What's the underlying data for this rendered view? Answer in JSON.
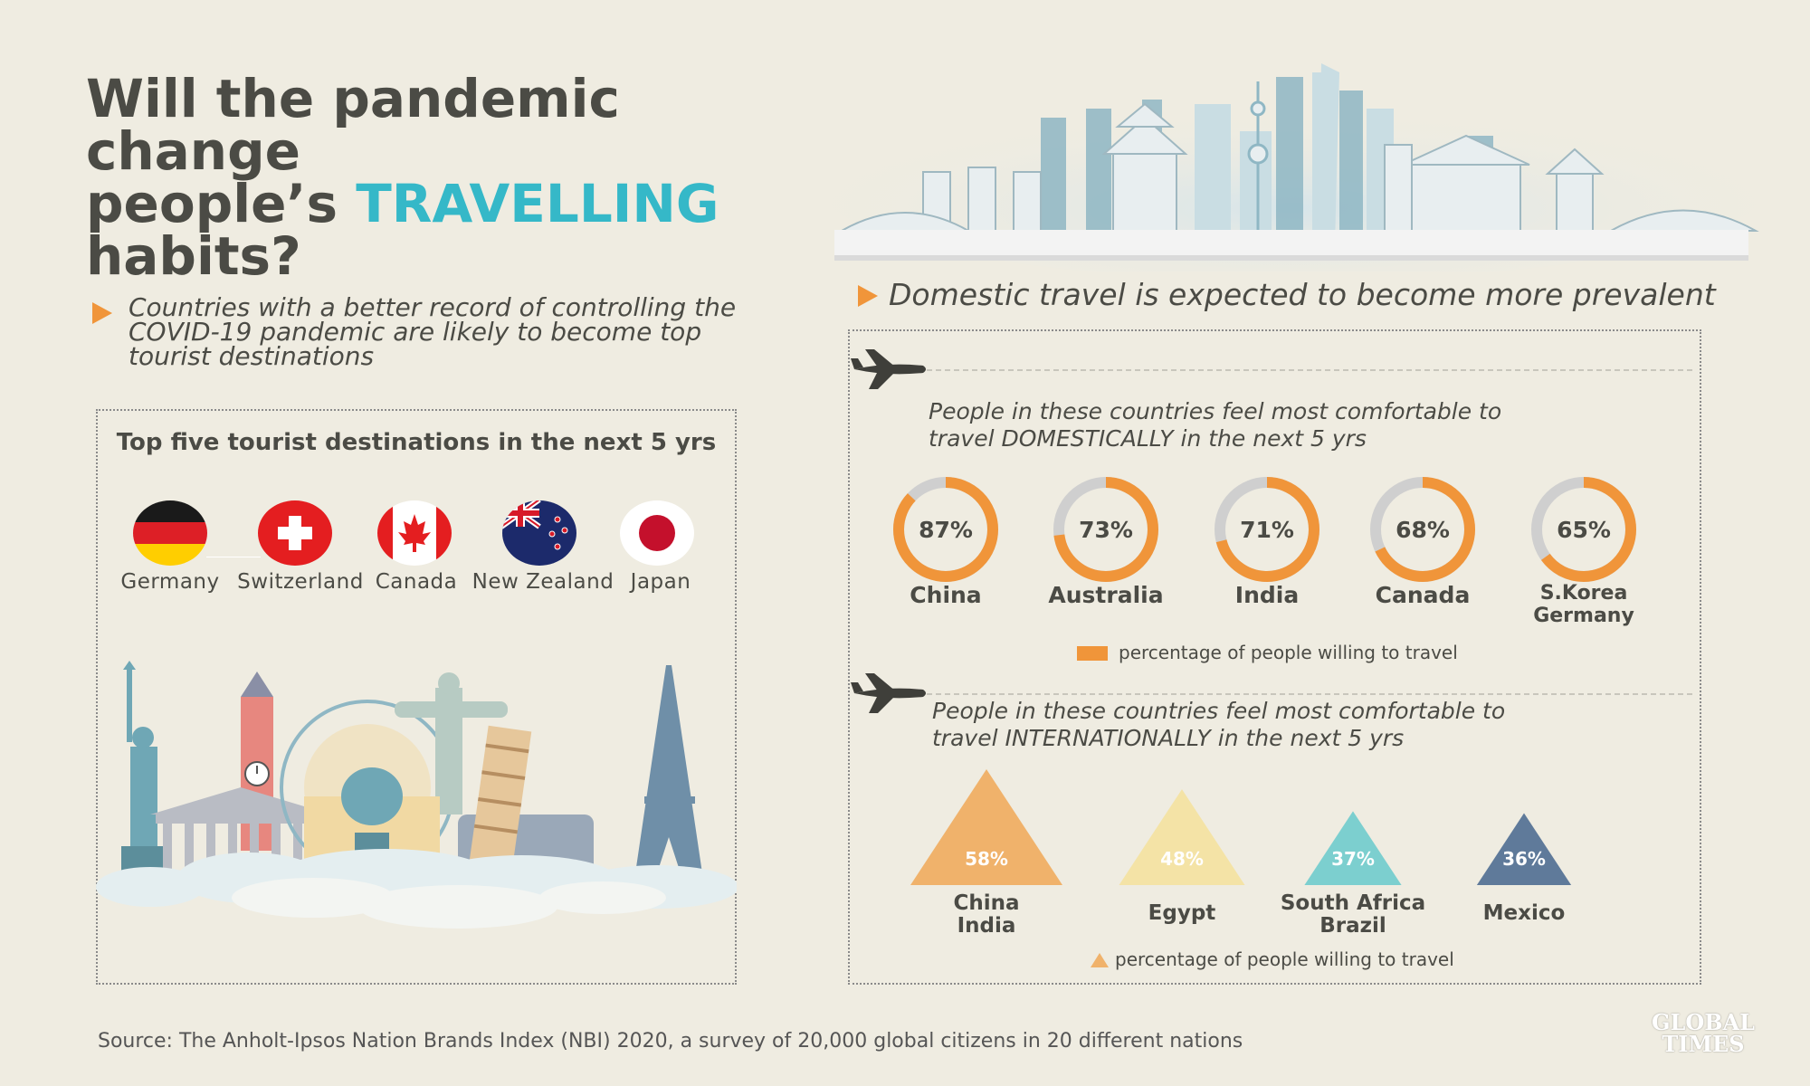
{
  "title": {
    "line1": "Will the pandemic change",
    "line2_prefix": "people’s ",
    "line2_highlight": "TRAVELLING",
    "line3": "habits?"
  },
  "left_section": {
    "subtitle": "Countries with a better record of controlling the COVID-19 pandemic are likely to become top tourist destinations",
    "box_title": "Top five tourist destinations in the next 5 yrs",
    "destinations": [
      {
        "name": "Germany",
        "flag": "germany-flag"
      },
      {
        "name": "Switzerland",
        "flag": "switzerland-flag"
      },
      {
        "name": "Canada",
        "flag": "canada-flag"
      },
      {
        "name": "New Zealand",
        "flag": "new-zealand-flag"
      },
      {
        "name": "Japan",
        "flag": "japan-flag"
      }
    ]
  },
  "right_section": {
    "subtitle": "Domestic travel is expected to become more prevalent",
    "domestic_heading_line1": "People in these countries feel most comfortable to",
    "domestic_heading_line2": "travel DOMESTICALLY in the next 5 yrs",
    "international_heading_line1": "People in these countries feel most comfortable to",
    "international_heading_line2": "travel INTERNATIONALLY in the next 5 yrs",
    "legend_label": "percentage of people willing to travel"
  },
  "chart_data": [
    {
      "type": "donut",
      "title": "People in these countries feel most comfortable to travel DOMESTICALLY in the next 5 yrs",
      "categories": [
        "China",
        "Australia",
        "India",
        "Canada",
        "S.Korea Germany"
      ],
      "category_lines": [
        [
          "China"
        ],
        [
          "Australia"
        ],
        [
          "India"
        ],
        [
          "Canada"
        ],
        [
          "S.Korea",
          "Germany"
        ]
      ],
      "values": [
        87,
        73,
        71,
        68,
        65
      ],
      "value_labels": [
        "87%",
        "73%",
        "71%",
        "68%",
        "65%"
      ],
      "unit": "%",
      "legend": "percentage of people willing to travel",
      "colors": {
        "fill": "#f0953a",
        "track": "#cfcfcf"
      }
    },
    {
      "type": "bar",
      "mark": "triangle",
      "title": "People in these countries feel most comfortable to travel INTERNATIONALLY in the next 5 yrs",
      "categories": [
        "China India",
        "Egypt",
        "South Africa Brazil",
        "Mexico"
      ],
      "category_lines": [
        [
          "China",
          "India"
        ],
        [
          "Egypt"
        ],
        [
          "South Africa",
          "Brazil"
        ],
        [
          "Mexico"
        ]
      ],
      "values": [
        58,
        48,
        37,
        36
      ],
      "value_labels": [
        "58%",
        "48%",
        "37%",
        "36%"
      ],
      "unit": "%",
      "legend": "percentage of people willing to travel",
      "colors": [
        "#f0b26b",
        "#f4e3a6",
        "#7ccfcf",
        "#5f7a9a"
      ]
    }
  ],
  "footer": {
    "source": "Source: The Anholt-Ipsos Nation Brands Index (NBI) 2020, a survey of 20,000 global citizens in 20 different nations",
    "brand_line1": "GLOBAL",
    "brand_line2": "TIMES"
  }
}
